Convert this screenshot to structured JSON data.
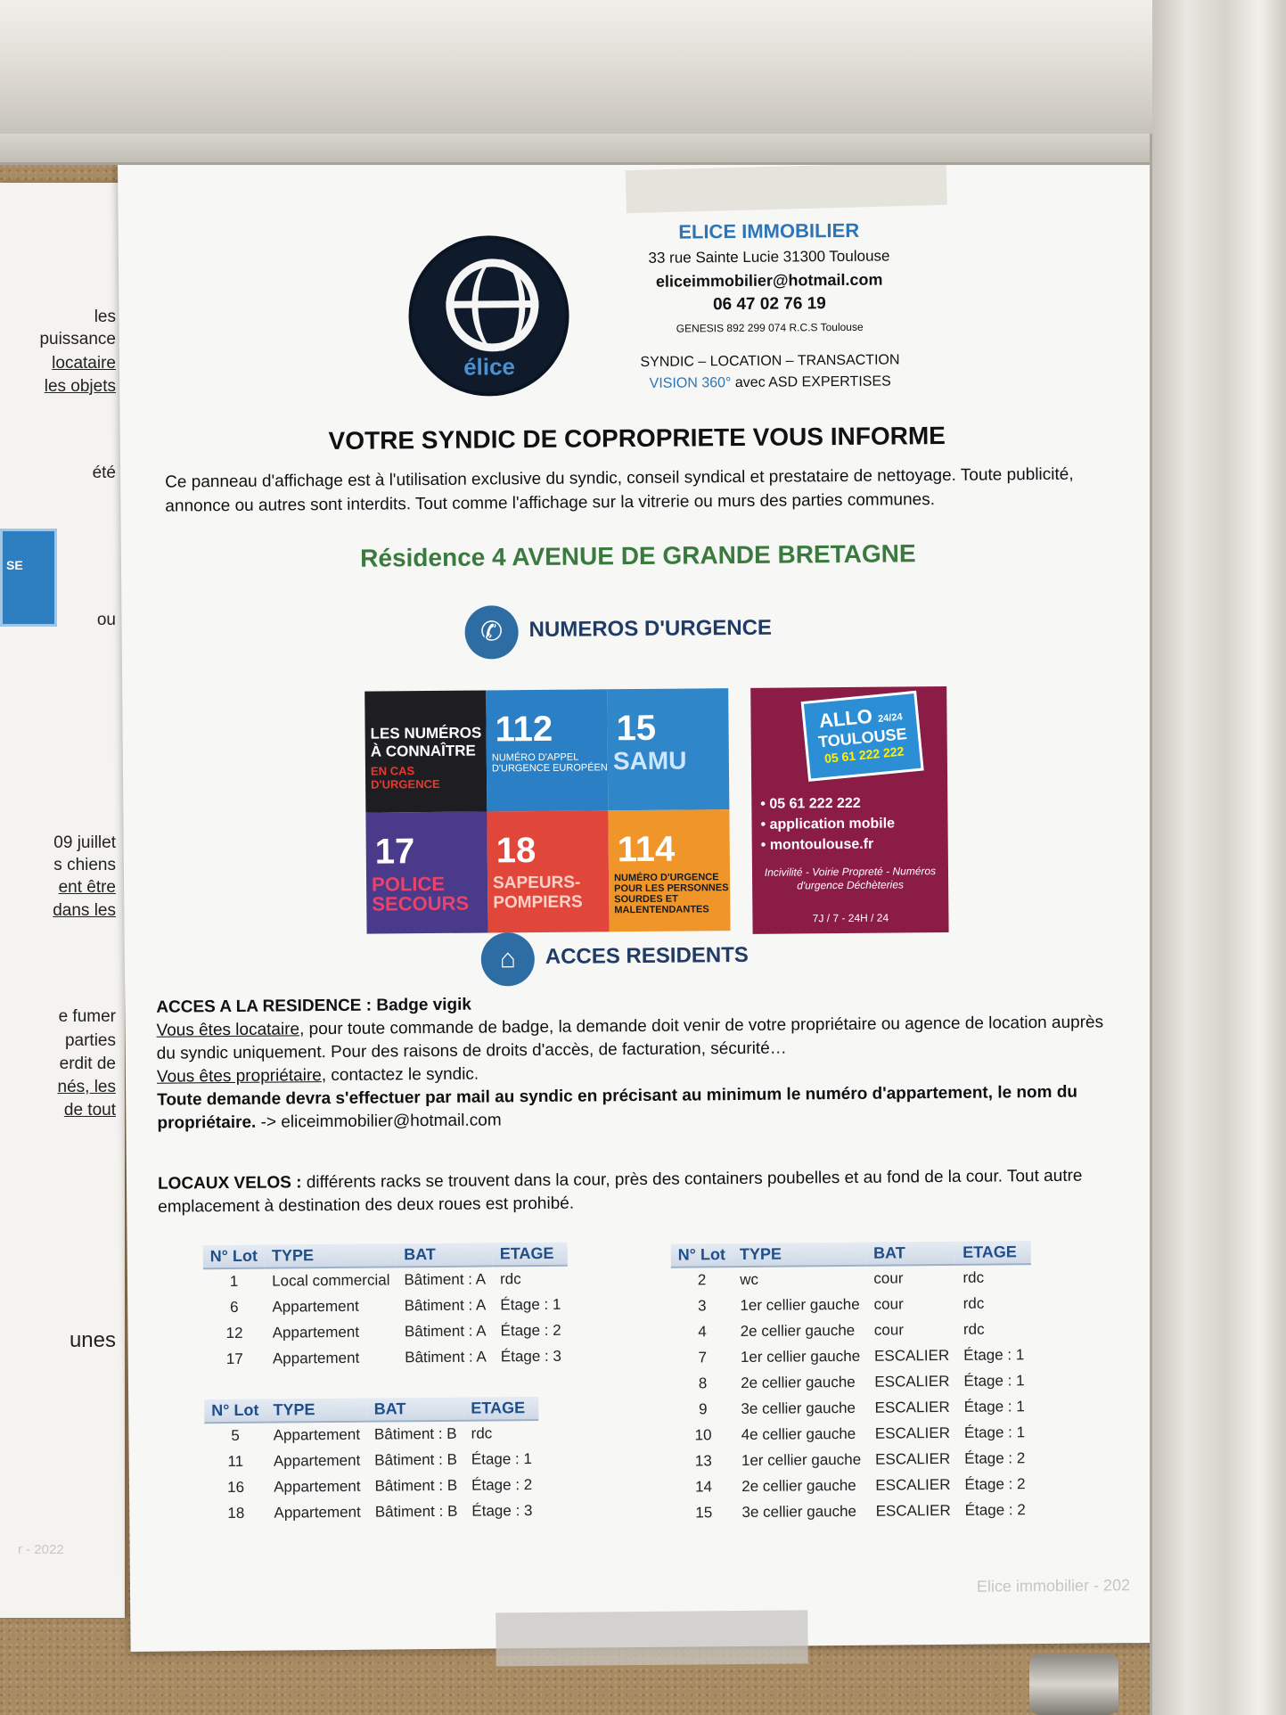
{
  "left_sheet": {
    "lines": [
      "les",
      "puissance",
      "locataire",
      "les objets",
      "été",
      "ou",
      "09 juillet",
      "s chiens",
      "ent être",
      "dans les",
      "e fumer",
      "parties",
      "erdit de",
      "nés,  les",
      "de tout",
      "unes"
    ],
    "footer": "r - 2022"
  },
  "company": {
    "logo_text": "élice",
    "name": "ELICE IMMOBILIER",
    "address": "33 rue Sainte Lucie 31300 Toulouse",
    "email": "eliceimmobilier@hotmail.com",
    "phone": "06 47 02 76 19",
    "registration": "GENESIS 892 299 074 R.C.S Toulouse",
    "services": "SYNDIC – LOCATION – TRANSACTION",
    "vision_highlight": "VISION 360°",
    "vision_rest": " avec ASD EXPERTISES"
  },
  "notice": {
    "title": "VOTRE SYNDIC DE COPROPRIETE VOUS INFORME",
    "intro": "Ce panneau d'affichage est à l'utilisation exclusive du syndic, conseil syndical et prestataire de nettoyage. Toute publicité, annonce ou autres sont interdits. Tout comme l'affichage sur la vitrerie ou murs des parties communes.",
    "residence": "Résidence 4 AVENUE DE GRANDE BRETAGNE"
  },
  "emergency": {
    "heading": "NUMEROS D'URGENCE",
    "intro_lines": [
      "LES NUMÉROS",
      "À CONNAÎTRE"
    ],
    "intro_red": "EN CAS D'URGENCE",
    "tiles": [
      {
        "number": "112",
        "label": "NUMÉRO D'APPEL D'URGENCE EUROPÉEN",
        "color": "#2b7fc4"
      },
      {
        "number": "15",
        "label": "SAMU",
        "color": "#2f86c8"
      },
      {
        "number": "17",
        "label": "POLICE SECOURS",
        "color": "#4a3a8a"
      },
      {
        "number": "18",
        "label": "SAPEURS-POMPIERS",
        "color": "#e0463a"
      },
      {
        "number": "114",
        "label": "NUMÉRO D'URGENCE POUR LES PERSONNES SOURDES ET MALENTENDANTES",
        "color": "#f0952a"
      }
    ],
    "allo": {
      "title": "ALLO",
      "hours_badge": "24/24",
      "city": "TOULOUSE",
      "number": "05 61 222 222",
      "bullets": [
        "05 61 222 222",
        "application mobile",
        "montoulouse.fr"
      ],
      "services": "Incivilité - Voirie Propreté - Numéros d'urgence Déchèteries",
      "hours": "7J / 7 - 24H / 24"
    }
  },
  "access": {
    "heading": "ACCES RESIDENTS",
    "badge_label": "ACCES A LA RESIDENCE",
    "badge_value": " : Badge vigik",
    "tenant_label": "Vous êtes locataire",
    "tenant_text": ", pour toute commande de badge, la demande doit venir de votre propriétaire ou agence de location auprès du syndic uniquement. Pour des raisons de droits d'accès, de facturation, sécurité…",
    "owner_label": "Vous êtes propriétaire",
    "owner_text": ", contactez le syndic.",
    "request_bold": "Toute demande devra s'effectuer par mail au syndic en précisant au minimum le numéro d'appartement, le nom du propriétaire.",
    "request_mail": " -> eliceimmobilier@hotmail.com"
  },
  "velos": {
    "label": "LOCAUX VELOS :",
    "text": " différents racks se trouvent dans la cour, près des containers poubelles et au fond de la cour. Tout autre emplacement à destination des deux roues est prohibé."
  },
  "tables": {
    "headers": [
      "N° Lot",
      "TYPE",
      "BAT",
      "ETAGE"
    ],
    "bat_a": [
      [
        "1",
        "Local commercial",
        "Bâtiment : A",
        "rdc"
      ],
      [
        "6",
        "Appartement",
        "Bâtiment : A",
        "Étage : 1"
      ],
      [
        "12",
        "Appartement",
        "Bâtiment : A",
        "Étage : 2"
      ],
      [
        "17",
        "Appartement",
        "Bâtiment : A",
        "Étage : 3"
      ]
    ],
    "bat_b": [
      [
        "5",
        "Appartement",
        "Bâtiment : B",
        "rdc"
      ],
      [
        "11",
        "Appartement",
        "Bâtiment : B",
        "Étage : 1"
      ],
      [
        "16",
        "Appartement",
        "Bâtiment : B",
        "Étage : 2"
      ],
      [
        "18",
        "Appartement",
        "Bâtiment : B",
        "Étage : 3"
      ]
    ],
    "annexes": [
      [
        "2",
        "wc",
        "cour",
        "rdc"
      ],
      [
        "3",
        "1er cellier gauche",
        "cour",
        "rdc"
      ],
      [
        "4",
        "2e cellier gauche",
        "cour",
        "rdc"
      ],
      [
        "7",
        "1er cellier gauche",
        "ESCALIER",
        "Étage : 1"
      ],
      [
        "8",
        "2e cellier gauche",
        "ESCALIER",
        "Étage : 1"
      ],
      [
        "9",
        "3e cellier gauche",
        "ESCALIER",
        "Étage : 1"
      ],
      [
        "10",
        "4e cellier gauche",
        "ESCALIER",
        "Étage : 1"
      ],
      [
        "13",
        "1er cellier gauche",
        "ESCALIER",
        "Étage : 2"
      ],
      [
        "14",
        "2e cellier gauche",
        "ESCALIER",
        "Étage : 2"
      ],
      [
        "15",
        "3e cellier gauche",
        "ESCALIER",
        "Étage : 2"
      ]
    ]
  },
  "footer": "Elice immobilier - 202"
}
